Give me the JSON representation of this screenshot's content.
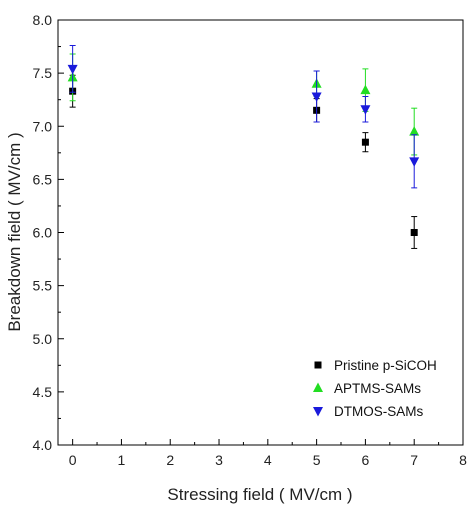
{
  "chart_data": {
    "type": "scatter",
    "title": "",
    "xlabel": "Stressing field ( MV/cm )",
    "ylabel": "Breakdown field ( MV/cm )",
    "xlim": [
      -0.3,
      8
    ],
    "ylim": [
      4.0,
      8.0
    ],
    "xticks": [
      "0",
      "1",
      "2",
      "3",
      "4",
      "5",
      "6",
      "7",
      "8"
    ],
    "yticks": [
      "4.0",
      "4.5",
      "5.0",
      "5.5",
      "6.0",
      "6.5",
      "7.0",
      "7.5",
      "8.0"
    ],
    "grid": false,
    "legend_position": "bottom-right",
    "series": [
      {
        "name": "Pristine p-SiCOH",
        "marker": "square",
        "color": "#000000",
        "x": [
          0,
          5,
          6,
          7
        ],
        "y": [
          7.33,
          7.15,
          6.85,
          6.0
        ],
        "err": [
          0.15,
          0.11,
          0.09,
          0.15
        ]
      },
      {
        "name": "APTMS-SAMs",
        "marker": "triangle-up",
        "color": "#22dd22",
        "x": [
          0,
          5,
          6,
          7
        ],
        "y": [
          7.46,
          7.4,
          7.34,
          6.95
        ],
        "err": [
          0.22,
          0.12,
          0.2,
          0.22
        ]
      },
      {
        "name": "DTMOS-SAMs",
        "marker": "triangle-down",
        "color": "#1a1adb",
        "x": [
          0,
          5,
          6,
          7
        ],
        "y": [
          7.54,
          7.28,
          7.16,
          6.67
        ],
        "err": [
          0.22,
          0.24,
          0.12,
          0.25
        ]
      }
    ]
  }
}
